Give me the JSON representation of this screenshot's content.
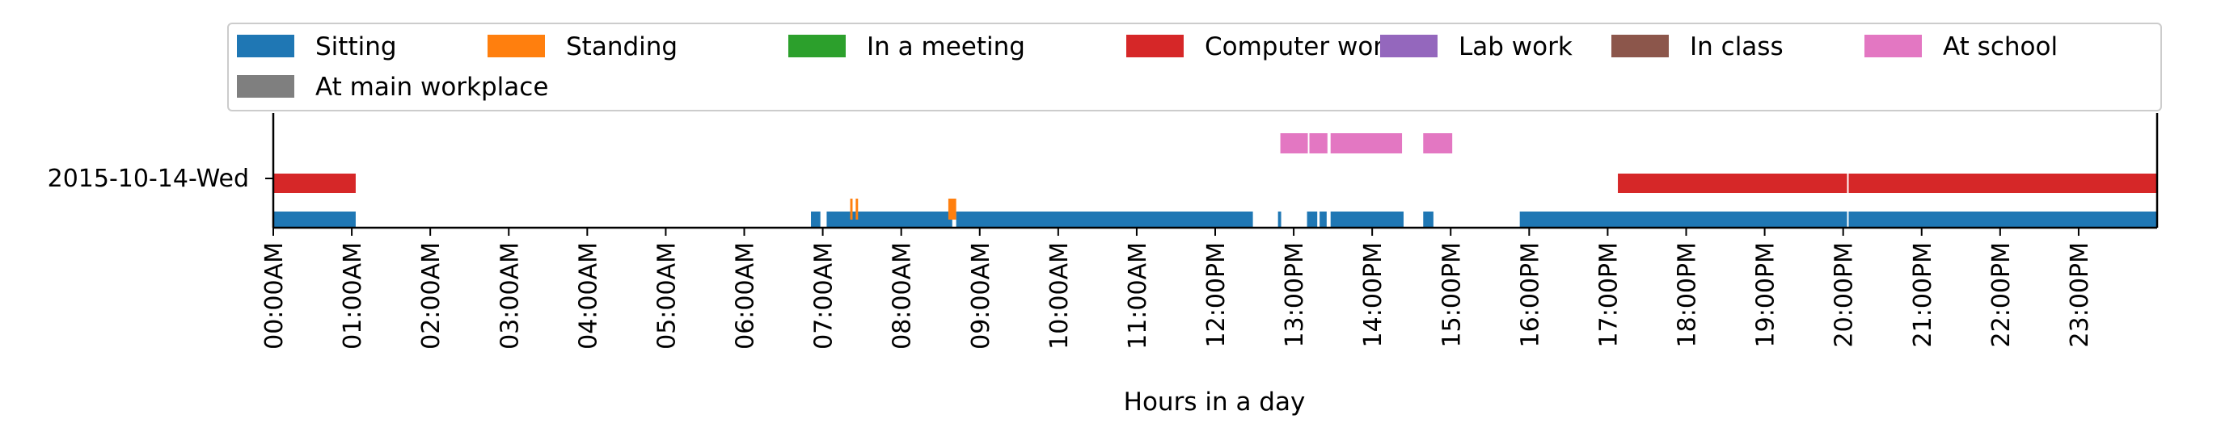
{
  "chart_data": {
    "type": "timeline",
    "title": "",
    "xlabel": "Hours in a day",
    "ylabel": "",
    "y_category": "2015-10-14-Wed",
    "x_range_hours": [
      0,
      24
    ],
    "xticks": [
      "00:00AM",
      "01:00AM",
      "02:00AM",
      "03:00AM",
      "04:00AM",
      "05:00AM",
      "06:00AM",
      "07:00AM",
      "08:00AM",
      "09:00AM",
      "10:00AM",
      "11:00AM",
      "12:00PM",
      "13:00PM",
      "14:00PM",
      "15:00PM",
      "16:00PM",
      "17:00PM",
      "18:00PM",
      "19:00PM",
      "20:00PM",
      "21:00PM",
      "22:00PM",
      "23:00PM"
    ],
    "legend_position": "top",
    "series": [
      {
        "name": "Sitting",
        "color": "#1f77b4",
        "lane": 0,
        "intervals": [
          [
            0.0,
            1.05
          ],
          [
            6.85,
            6.97
          ],
          [
            7.05,
            8.65
          ],
          [
            8.7,
            12.48
          ],
          [
            12.8,
            12.84
          ],
          [
            13.17,
            13.3
          ],
          [
            13.33,
            13.42
          ],
          [
            13.47,
            14.4
          ],
          [
            14.65,
            14.78
          ],
          [
            15.88,
            20.05
          ],
          [
            20.07,
            24.0
          ]
        ]
      },
      {
        "name": "Standing",
        "color": "#ff7f0e",
        "lane": 0.35,
        "intervals": [
          [
            7.35,
            7.38
          ],
          [
            7.42,
            7.45
          ],
          [
            8.6,
            8.7
          ]
        ]
      },
      {
        "name": "In a meeting",
        "color": "#2ca02c",
        "lane": null,
        "intervals": []
      },
      {
        "name": "Computer work",
        "color": "#d62728",
        "lane": 1,
        "intervals": [
          [
            0.0,
            1.05
          ],
          [
            17.13,
            20.05
          ],
          [
            20.07,
            24.0
          ]
        ]
      },
      {
        "name": "Lab work",
        "color": "#9467bd",
        "lane": null,
        "intervals": []
      },
      {
        "name": "In class",
        "color": "#8c564b",
        "lane": null,
        "intervals": []
      },
      {
        "name": "At school",
        "color": "#e377c2",
        "lane": 2,
        "intervals": [
          [
            12.83,
            13.18
          ],
          [
            13.2,
            13.43
          ],
          [
            13.47,
            14.38
          ],
          [
            14.65,
            15.02
          ]
        ]
      },
      {
        "name": "At main workplace",
        "color": "#7f7f7f",
        "lane": null,
        "intervals": []
      }
    ]
  }
}
